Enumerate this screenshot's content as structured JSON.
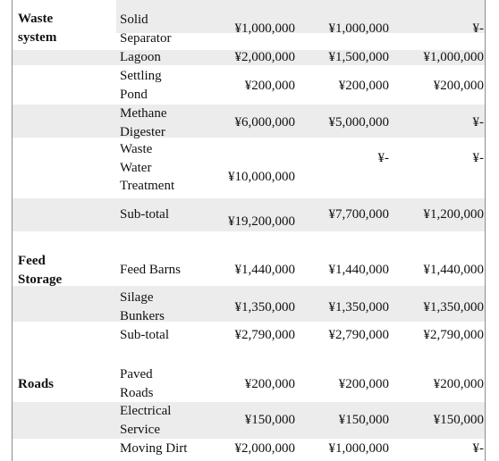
{
  "table": {
    "sections": [
      {
        "label_line1": "Waste",
        "label_line2": "system",
        "rows": [
          {
            "item_lines": [
              "Solid",
              "Separator"
            ],
            "values": [
              "¥1,000,000",
              "¥1,000,000",
              "¥-"
            ]
          },
          {
            "item_lines": [
              "Lagoon"
            ],
            "values": [
              "¥2,000,000",
              "¥1,500,000",
              "¥1,000,000"
            ]
          },
          {
            "item_lines": [
              "Settling",
              "Pond"
            ],
            "values": [
              "¥200,000",
              "¥200,000",
              "¥200,000"
            ]
          },
          {
            "item_lines": [
              "Methane",
              "Digester"
            ],
            "values": [
              "¥6,000,000",
              "¥5,000,000",
              "¥-"
            ]
          },
          {
            "item_lines": [
              "Waste",
              "Water",
              "Treatment"
            ],
            "values": [
              "¥10,000,000",
              "¥-",
              "¥-"
            ]
          },
          {
            "item_lines": [
              "Sub-total"
            ],
            "values": [
              "¥19,200,000",
              "¥7,700,000",
              "¥1,200,000"
            ]
          }
        ]
      },
      {
        "label_line1": "Feed",
        "label_line2": "Storage",
        "rows": [
          {
            "item_lines": [
              "Feed Barns"
            ],
            "values": [
              "¥1,440,000",
              "¥1,440,000",
              "¥1,440,000"
            ]
          },
          {
            "item_lines": [
              "Silage",
              "Bunkers"
            ],
            "values": [
              "¥1,350,000",
              "¥1,350,000",
              "¥1,350,000"
            ]
          },
          {
            "item_lines": [
              "Sub-total"
            ],
            "values": [
              "¥2,790,000",
              "¥2,790,000",
              "¥2,790,000"
            ]
          }
        ]
      },
      {
        "label_line1": "Roads",
        "rows": [
          {
            "item_lines": [
              "Paved",
              "Roads"
            ],
            "values": [
              "¥200,000",
              "¥200,000",
              "¥200,000"
            ]
          },
          {
            "item_lines": [
              "Electrical",
              "Service"
            ],
            "values": [
              "¥150,000",
              "¥150,000",
              "¥150,000"
            ]
          },
          {
            "item_lines": [
              "Moving Dirt"
            ],
            "values": [
              "¥2,000,000",
              "¥1,000,000",
              "¥-"
            ]
          }
        ]
      }
    ]
  }
}
